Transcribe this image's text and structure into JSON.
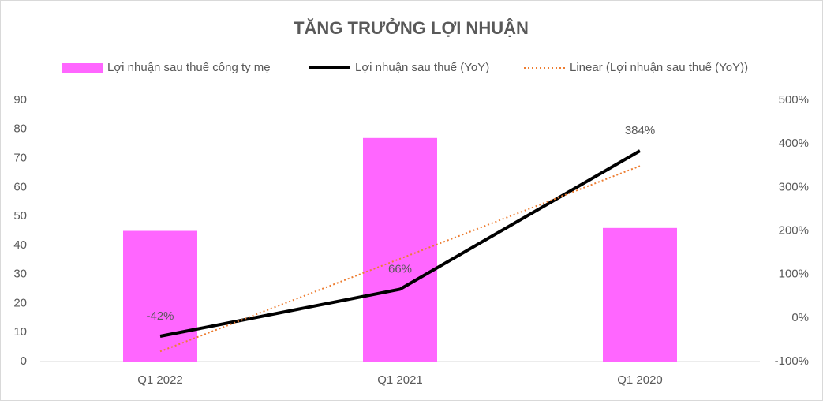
{
  "chart_data": {
    "type": "bar",
    "title": "TĂNG TRƯỞNG LỢI NHUẬN",
    "categories": [
      "Q1 2022",
      "Q1 2021",
      "Q1 2020"
    ],
    "series": [
      {
        "name": "Lợi nhuận sau thuế công ty mẹ",
        "type": "bar",
        "color": "#ff66ff",
        "values": [
          45,
          77,
          46
        ]
      },
      {
        "name": "Lợi nhuận sau thuế (YoY)",
        "type": "line",
        "axis": "y2",
        "color": "#000000",
        "values": [
          -42,
          66,
          384
        ],
        "value_labels": [
          "-42%",
          "66%",
          "384%"
        ]
      },
      {
        "name": "Linear (Lợi nhuận sau thuế (YoY))",
        "type": "line",
        "axis": "y2",
        "color": "#ed7d31",
        "dotted": true,
        "values": [
          -77,
          136,
          349
        ]
      }
    ],
    "ylim": [
      0,
      90
    ],
    "yticks": [
      0,
      10,
      20,
      30,
      40,
      50,
      60,
      70,
      80,
      90
    ],
    "y2lim": [
      -100,
      500
    ],
    "y2ticks": [
      {
        "value": -100,
        "label": "-100%"
      },
      {
        "value": 0,
        "label": "0%"
      },
      {
        "value": 100,
        "label": "100%"
      },
      {
        "value": 200,
        "label": "200%"
      },
      {
        "value": 300,
        "label": "300%"
      },
      {
        "value": 400,
        "label": "400%"
      },
      {
        "value": 500,
        "label": "500%"
      }
    ],
    "grid": false,
    "legend": "top"
  }
}
